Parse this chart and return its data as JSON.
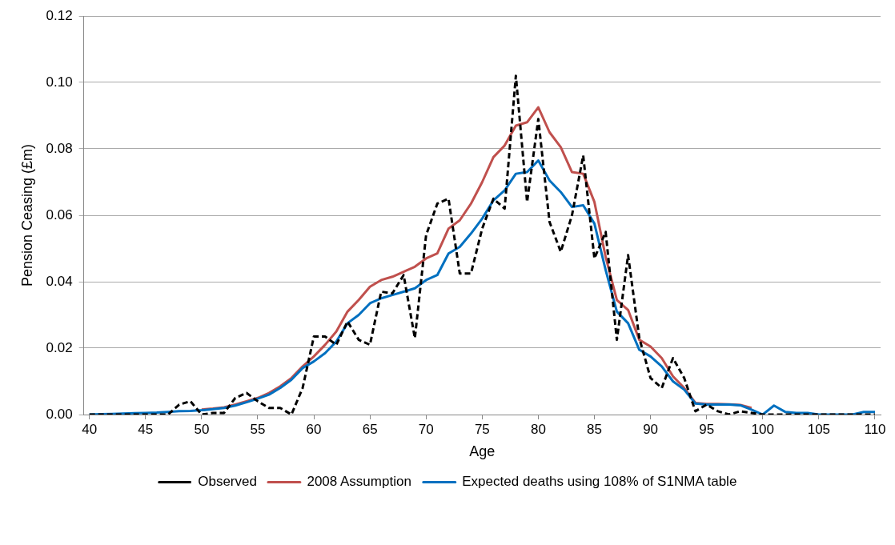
{
  "chart_data": {
    "type": "line",
    "xlabel": "Age",
    "ylabel": "Pension Ceasing (£m)",
    "x": [
      40,
      41,
      42,
      43,
      44,
      45,
      46,
      47,
      48,
      49,
      50,
      51,
      52,
      53,
      54,
      55,
      56,
      57,
      58,
      59,
      60,
      61,
      62,
      63,
      64,
      65,
      66,
      67,
      68,
      69,
      70,
      71,
      72,
      73,
      74,
      75,
      76,
      77,
      78,
      79,
      80,
      81,
      82,
      83,
      84,
      85,
      86,
      87,
      88,
      89,
      90,
      91,
      92,
      93,
      94,
      95,
      96,
      97,
      98,
      99,
      100,
      101,
      102,
      103,
      104,
      105,
      106,
      107,
      108,
      109,
      110
    ],
    "xlim": [
      39.5,
      110.5
    ],
    "xticks": [
      40,
      45,
      50,
      55,
      60,
      65,
      70,
      75,
      80,
      85,
      90,
      95,
      100,
      105,
      110
    ],
    "ylim": [
      0,
      0.12
    ],
    "yticks": [
      {
        "value": 0,
        "label": "0.00"
      },
      {
        "value": 0.02,
        "label": "0.02"
      },
      {
        "value": 0.04,
        "label": "0.04"
      },
      {
        "value": 0.06,
        "label": "0.06"
      },
      {
        "value": 0.08,
        "label": "0.08"
      },
      {
        "value": 0.1,
        "label": "0.10"
      },
      {
        "value": 0.12,
        "label": "0.12"
      }
    ],
    "grid": "y",
    "legend": "bottom",
    "marker": "none",
    "series": [
      {
        "name": "Observed",
        "color": "#000000",
        "line_style": "dashed",
        "values": [
          0,
          0,
          0,
          0,
          0,
          0,
          0,
          0,
          0.003,
          0.004,
          0,
          0.0005,
          0.0005,
          0.005,
          0.0065,
          0.004,
          0.002,
          0.002,
          0,
          0.008,
          0.0235,
          0.0235,
          0.021,
          0.028,
          0.0225,
          0.021,
          0.037,
          0.0365,
          0.042,
          0.023,
          0.054,
          0.0635,
          0.065,
          0.0425,
          0.0425,
          0.056,
          0.065,
          0.062,
          0.102,
          0.064,
          0.089,
          0.058,
          0.049,
          0.06,
          0.078,
          0.047,
          0.055,
          0.0225,
          0.048,
          0.023,
          0.011,
          0.008,
          0.017,
          0.011,
          0.001,
          0.003,
          0.001,
          0,
          0.001,
          0.0005,
          0,
          0,
          0,
          0,
          0,
          0,
          0,
          0,
          0,
          0,
          0
        ]
      },
      {
        "name": "2008 Assumption",
        "color": "#c0504d",
        "line_style": "solid",
        "values": [
          null,
          null,
          null,
          null,
          null,
          null,
          null,
          null,
          null,
          null,
          0.0015,
          0.0018,
          0.0022,
          0.003,
          0.004,
          0.005,
          0.0065,
          0.0085,
          0.011,
          0.0145,
          0.0175,
          0.021,
          0.025,
          0.031,
          0.0345,
          0.0385,
          0.0405,
          0.0415,
          0.043,
          0.0445,
          0.047,
          0.0485,
          0.056,
          0.0585,
          0.0635,
          0.07,
          0.0775,
          0.081,
          0.087,
          0.088,
          0.0925,
          0.085,
          0.0805,
          0.073,
          0.0725,
          0.064,
          0.0475,
          0.0345,
          0.0315,
          0.0225,
          0.0205,
          0.017,
          0.0115,
          0.008,
          0.0035,
          0.0032,
          0.0032,
          0.0031,
          0.0029,
          0.002,
          null,
          null,
          null,
          null,
          null,
          null,
          null,
          null,
          null,
          null,
          null
        ]
      },
      {
        "name": "Expected deaths using 108% of S1NMA table",
        "color": "#0070c0",
        "line_style": "solid",
        "values": [
          0,
          0.0001,
          0.0002,
          0.0003,
          0.0004,
          0.0005,
          0.0006,
          0.0008,
          0.001,
          0.0011,
          0.0013,
          0.0016,
          0.002,
          0.0027,
          0.0037,
          0.0048,
          0.006,
          0.008,
          0.0105,
          0.014,
          0.016,
          0.0185,
          0.022,
          0.0275,
          0.03,
          0.0335,
          0.035,
          0.036,
          0.037,
          0.038,
          0.0405,
          0.042,
          0.0485,
          0.0505,
          0.0545,
          0.059,
          0.0645,
          0.0675,
          0.0725,
          0.073,
          0.0765,
          0.0705,
          0.067,
          0.0625,
          0.063,
          0.0575,
          0.0435,
          0.031,
          0.0275,
          0.0195,
          0.0175,
          0.0145,
          0.01,
          0.0075,
          0.0033,
          0.003,
          0.003,
          0.003,
          0.0028,
          0.0015,
          0,
          0.0027,
          0.0008,
          0.0005,
          0.0005,
          0,
          0,
          0,
          0,
          0.0008,
          0.0008
        ]
      }
    ]
  }
}
